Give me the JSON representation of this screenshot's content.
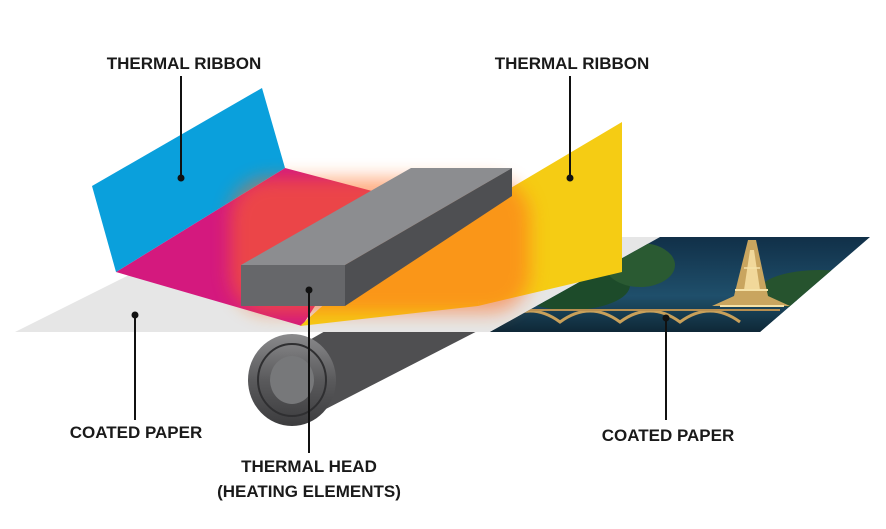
{
  "labels": {
    "ribbon_left": "THERMAL RIBBON",
    "ribbon_right": "THERMAL RIBBON",
    "paper_left": "COATED PAPER",
    "paper_right": "COATED PAPER",
    "head_line1": "THERMAL HEAD",
    "head_line2": "(HEATING ELEMENTS)"
  },
  "colors": {
    "cyan": "#0aa0dc",
    "magenta": "#d4197e",
    "yellow": "#f5cc14",
    "head": "#6c6d70",
    "paper": "#e6e6e6",
    "roller": "#4b4b4c",
    "leader": "#111111"
  }
}
